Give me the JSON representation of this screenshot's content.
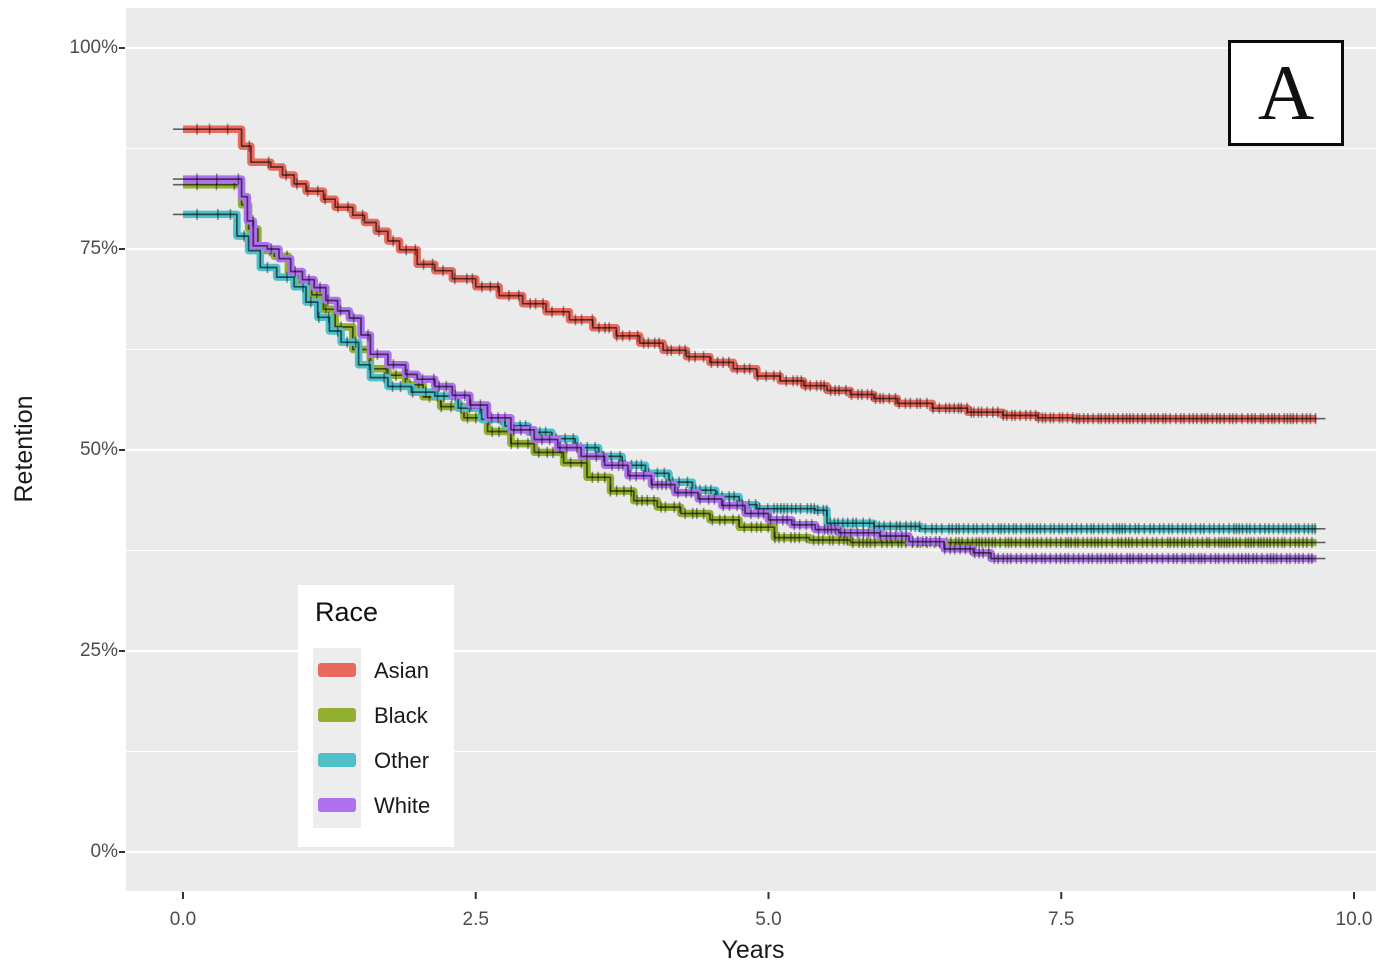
{
  "panel_label": "A",
  "axes": {
    "x_title": "Years",
    "y_title": "Retention",
    "x_ticks": [
      {
        "label": "0.0",
        "value": 0
      },
      {
        "label": "2.5",
        "value": 2.5
      },
      {
        "label": "5.0",
        "value": 5
      },
      {
        "label": "7.5",
        "value": 7.5
      },
      {
        "label": "10.0",
        "value": 10
      }
    ],
    "y_ticks": [
      {
        "label": "0%",
        "value": 0
      },
      {
        "label": "25%",
        "value": 25
      },
      {
        "label": "50%",
        "value": 50
      },
      {
        "label": "75%",
        "value": 75
      },
      {
        "label": "100%",
        "value": 100
      }
    ]
  },
  "legend": {
    "title": "Race",
    "items": [
      {
        "label": "Asian",
        "color": "#e8695e"
      },
      {
        "label": "Black",
        "color": "#92af32"
      },
      {
        "label": "Other",
        "color": "#4dc0ca"
      },
      {
        "label": "White",
        "color": "#ae70ee"
      }
    ]
  },
  "style_colors": {
    "panel_background": "#ebebeb",
    "gridline": "#ffffff",
    "tick_label": "#4d4d4d",
    "censor_mark": "rgba(0,0,0,0.42)",
    "center_line": "rgba(0,0,0,0.6)"
  },
  "chart_data": {
    "type": "line",
    "subtype": "kaplan-meier-step-curves-with-censor-marks",
    "title": "",
    "xlabel": "Years",
    "ylabel": "Retention",
    "xlim": [
      0,
      10
    ],
    "ylim_percent": [
      0,
      100
    ],
    "grid": "horizontal-only",
    "legend_position": "inside-lower-left",
    "series": [
      {
        "name": "Asian",
        "color": "#e8695e",
        "points": [
          [
            0,
            89.9
          ],
          [
            0.45,
            89.9
          ],
          [
            0.5,
            87.8
          ],
          [
            0.58,
            85.8
          ],
          [
            0.75,
            85.2
          ],
          [
            0.85,
            84.2
          ],
          [
            0.95,
            83.1
          ],
          [
            1.05,
            82.2
          ],
          [
            1.2,
            81.2
          ],
          [
            1.3,
            80.2
          ],
          [
            1.45,
            79.2
          ],
          [
            1.55,
            78.3
          ],
          [
            1.65,
            77.2
          ],
          [
            1.75,
            76.0
          ],
          [
            1.85,
            74.9
          ],
          [
            2.0,
            73.1
          ],
          [
            2.15,
            72.3
          ],
          [
            2.3,
            71.3
          ],
          [
            2.5,
            70.3
          ],
          [
            2.7,
            69.2
          ],
          [
            2.9,
            68.2
          ],
          [
            3.1,
            67.2
          ],
          [
            3.3,
            66.2
          ],
          [
            3.5,
            65.2
          ],
          [
            3.7,
            64.2
          ],
          [
            3.9,
            63.3
          ],
          [
            4.1,
            62.4
          ],
          [
            4.3,
            61.6
          ],
          [
            4.5,
            60.9
          ],
          [
            4.7,
            60.1
          ],
          [
            4.9,
            59.2
          ],
          [
            5.1,
            58.6
          ],
          [
            5.3,
            58.0
          ],
          [
            5.5,
            57.4
          ],
          [
            5.7,
            56.9
          ],
          [
            5.9,
            56.4
          ],
          [
            6.1,
            55.8
          ],
          [
            6.4,
            55.2
          ],
          [
            6.7,
            54.7
          ],
          [
            7.0,
            54.3
          ],
          [
            7.3,
            54.0
          ],
          [
            7.6,
            53.9
          ],
          [
            9.68,
            53.9
          ]
        ]
      },
      {
        "name": "Black",
        "color": "#92af32",
        "points": [
          [
            0,
            83.0
          ],
          [
            0.45,
            83.0
          ],
          [
            0.5,
            80.5
          ],
          [
            0.56,
            77.5
          ],
          [
            0.64,
            74.8
          ],
          [
            0.78,
            74.1
          ],
          [
            0.9,
            71.9
          ],
          [
            1.0,
            70.8
          ],
          [
            1.1,
            69.3
          ],
          [
            1.2,
            67.5
          ],
          [
            1.3,
            65.3
          ],
          [
            1.45,
            62.5
          ],
          [
            1.6,
            60.1
          ],
          [
            1.75,
            59.3
          ],
          [
            1.9,
            58.1
          ],
          [
            2.05,
            56.6
          ],
          [
            2.2,
            55.4
          ],
          [
            2.4,
            54.0
          ],
          [
            2.6,
            52.3
          ],
          [
            2.8,
            50.8
          ],
          [
            3.0,
            49.7
          ],
          [
            3.25,
            48.4
          ],
          [
            3.45,
            46.6
          ],
          [
            3.65,
            44.9
          ],
          [
            3.85,
            43.7
          ],
          [
            4.05,
            42.9
          ],
          [
            4.25,
            42.1
          ],
          [
            4.5,
            41.3
          ],
          [
            4.75,
            40.4
          ],
          [
            5.05,
            39.1
          ],
          [
            5.35,
            38.8
          ],
          [
            5.7,
            38.5
          ],
          [
            9.68,
            38.5
          ]
        ]
      },
      {
        "name": "Other",
        "color": "#4dc0ca",
        "points": [
          [
            0,
            79.3
          ],
          [
            0.38,
            79.3
          ],
          [
            0.46,
            76.6
          ],
          [
            0.56,
            74.8
          ],
          [
            0.66,
            72.7
          ],
          [
            0.8,
            71.5
          ],
          [
            0.95,
            70.3
          ],
          [
            1.05,
            68.4
          ],
          [
            1.15,
            66.5
          ],
          [
            1.25,
            64.8
          ],
          [
            1.35,
            63.4
          ],
          [
            1.5,
            60.6
          ],
          [
            1.6,
            59.0
          ],
          [
            1.75,
            57.9
          ],
          [
            1.95,
            57.2
          ],
          [
            2.15,
            56.7
          ],
          [
            2.35,
            55.2
          ],
          [
            2.55,
            53.8
          ],
          [
            2.75,
            53.0
          ],
          [
            2.95,
            52.2
          ],
          [
            3.15,
            51.4
          ],
          [
            3.35,
            50.3
          ],
          [
            3.55,
            49.2
          ],
          [
            3.75,
            48.1
          ],
          [
            3.95,
            47.1
          ],
          [
            4.15,
            46.0
          ],
          [
            4.35,
            45.0
          ],
          [
            4.55,
            44.2
          ],
          [
            4.75,
            43.2
          ],
          [
            4.9,
            42.7
          ],
          [
            5.4,
            42.5
          ],
          [
            5.5,
            40.9
          ],
          [
            5.9,
            40.5
          ],
          [
            6.3,
            40.2
          ],
          [
            9.68,
            40.2
          ]
        ]
      },
      {
        "name": "White",
        "color": "#ae70ee",
        "points": [
          [
            0,
            83.7
          ],
          [
            0.45,
            83.7
          ],
          [
            0.5,
            81.5
          ],
          [
            0.55,
            78.5
          ],
          [
            0.6,
            75.4
          ],
          [
            0.72,
            75.0
          ],
          [
            0.82,
            73.8
          ],
          [
            0.92,
            72.2
          ],
          [
            1.02,
            71.2
          ],
          [
            1.12,
            70.2
          ],
          [
            1.22,
            68.6
          ],
          [
            1.32,
            67.3
          ],
          [
            1.42,
            66.4
          ],
          [
            1.52,
            64.3
          ],
          [
            1.6,
            61.9
          ],
          [
            1.75,
            60.6
          ],
          [
            1.9,
            59.4
          ],
          [
            2.0,
            58.8
          ],
          [
            2.15,
            57.9
          ],
          [
            2.3,
            56.8
          ],
          [
            2.45,
            55.6
          ],
          [
            2.6,
            54.0
          ],
          [
            2.8,
            52.5
          ],
          [
            3.0,
            51.3
          ],
          [
            3.2,
            50.3
          ],
          [
            3.4,
            49.2
          ],
          [
            3.6,
            48.1
          ],
          [
            3.8,
            46.8
          ],
          [
            4.0,
            45.7
          ],
          [
            4.2,
            44.7
          ],
          [
            4.4,
            43.9
          ],
          [
            4.6,
            43.1
          ],
          [
            4.8,
            42.1
          ],
          [
            5.0,
            41.3
          ],
          [
            5.2,
            40.7
          ],
          [
            5.4,
            40.1
          ],
          [
            5.6,
            39.7
          ],
          [
            5.95,
            39.3
          ],
          [
            6.2,
            38.6
          ],
          [
            6.5,
            37.7
          ],
          [
            6.75,
            37.2
          ],
          [
            6.9,
            36.5
          ],
          [
            9.68,
            36.5
          ]
        ]
      }
    ]
  }
}
